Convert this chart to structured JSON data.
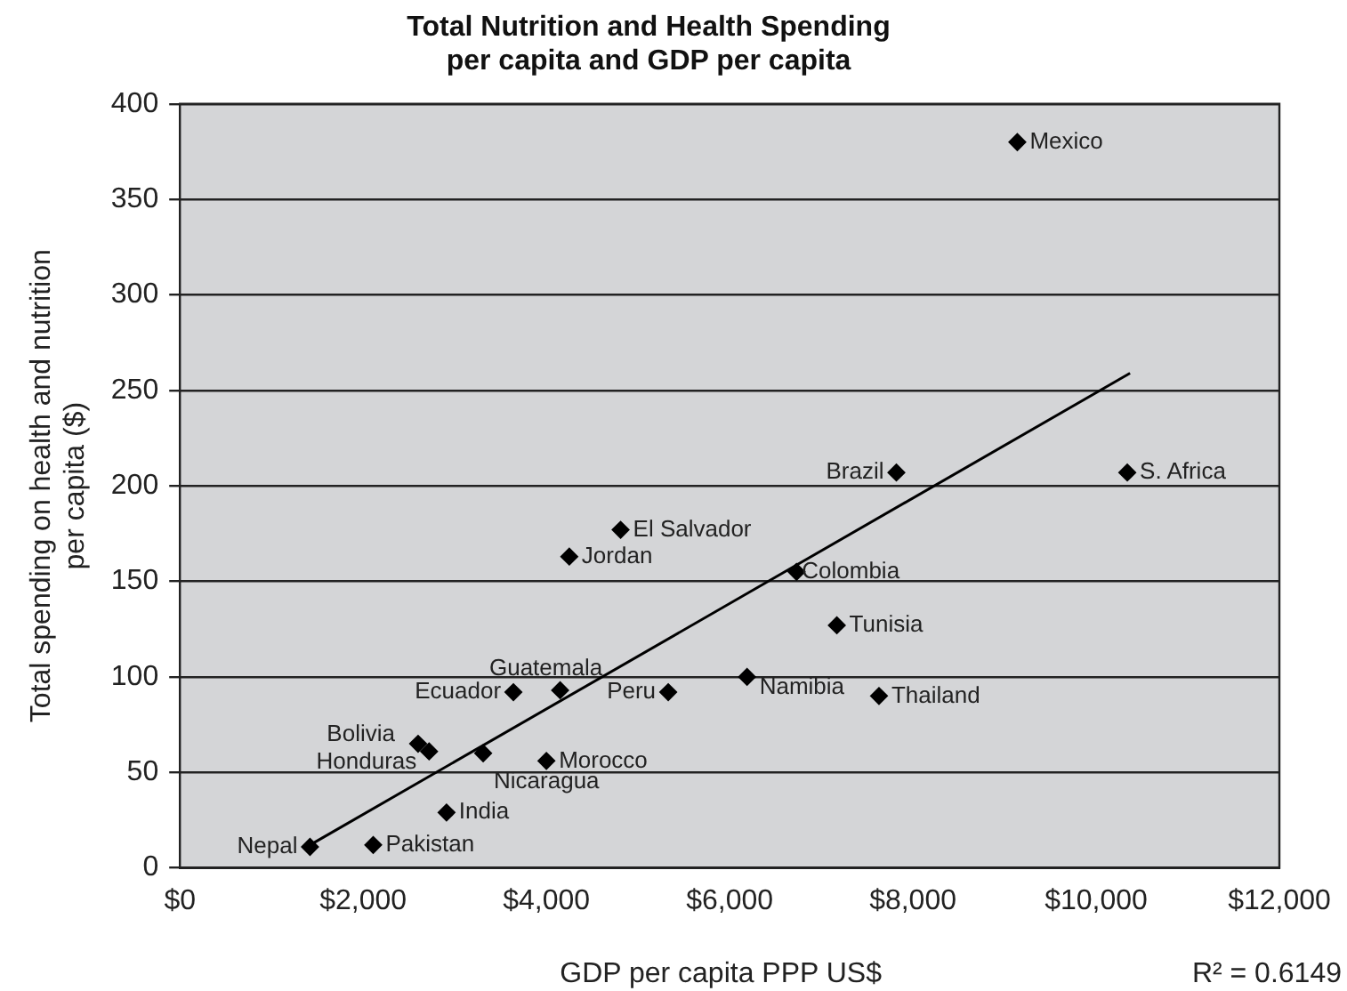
{
  "chart_data": {
    "type": "scatter",
    "title": "Total Nutrition and Health Spending\nper capita and GDP per capita",
    "xlabel": "GDP per capita PPP US$",
    "ylabel": "Total spending on health and nutrition\nper capita ($)",
    "xlim": [
      0,
      12000
    ],
    "xticks": [
      {
        "value": 0,
        "label": "$0"
      },
      {
        "value": 2000,
        "label": "$2,000"
      },
      {
        "value": 4000,
        "label": "$4,000"
      },
      {
        "value": 6000,
        "label": "$6,000"
      },
      {
        "value": 8000,
        "label": "$8,000"
      },
      {
        "value": 10000,
        "label": "$10,000"
      },
      {
        "value": 12000,
        "label": "$12,000"
      }
    ],
    "ylim": [
      0,
      400
    ],
    "yticks": [
      0,
      50,
      100,
      150,
      200,
      250,
      300,
      350,
      400
    ],
    "grid": "y",
    "legend": false,
    "marker": "diamond",
    "series": [
      {
        "name": "Mexico",
        "color": "#000000",
        "x": [
          9140
        ],
        "values": [
          380
        ]
      },
      {
        "name": "Brazil",
        "color": "#000000",
        "x": [
          7820
        ],
        "values": [
          207
        ]
      },
      {
        "name": "S. Africa",
        "color": "#000000",
        "x": [
          10340
        ],
        "values": [
          207
        ]
      },
      {
        "name": "El Salvador",
        "color": "#000000",
        "x": [
          4810
        ],
        "values": [
          177
        ]
      },
      {
        "name": "Jordan",
        "color": "#000000",
        "x": [
          4250
        ],
        "values": [
          163
        ]
      },
      {
        "name": "Colombia",
        "color": "#000000",
        "x": [
          6730
        ],
        "values": [
          155
        ]
      },
      {
        "name": "Tunisia",
        "color": "#000000",
        "x": [
          7170
        ],
        "values": [
          127
        ]
      },
      {
        "name": "Guatemala",
        "color": "#000000",
        "x": [
          4150
        ],
        "values": [
          93
        ]
      },
      {
        "name": "Ecuador",
        "color": "#000000",
        "x": [
          3640
        ],
        "values": [
          92
        ]
      },
      {
        "name": "Peru",
        "color": "#000000",
        "x": [
          5330
        ],
        "values": [
          92
        ]
      },
      {
        "name": "Namibia",
        "color": "#000000",
        "x": [
          6190
        ],
        "values": [
          100
        ]
      },
      {
        "name": "Thailand",
        "color": "#000000",
        "x": [
          7630
        ],
        "values": [
          90
        ]
      },
      {
        "name": "Bolivia",
        "color": "#000000",
        "x": [
          2600
        ],
        "values": [
          65
        ]
      },
      {
        "name": "Honduras",
        "color": "#000000",
        "x": [
          2720
        ],
        "values": [
          61
        ]
      },
      {
        "name": "Nicaragua",
        "color": "#000000",
        "x": [
          3310
        ],
        "values": [
          60
        ]
      },
      {
        "name": "Morocco",
        "color": "#000000",
        "x": [
          4000
        ],
        "values": [
          56
        ]
      },
      {
        "name": "India",
        "color": "#000000",
        "x": [
          2910
        ],
        "values": [
          29
        ]
      },
      {
        "name": "Pakistan",
        "color": "#000000",
        "x": [
          2110
        ],
        "values": [
          12
        ]
      },
      {
        "name": "Nepal",
        "color": "#000000",
        "x": [
          1420
        ],
        "values": [
          11
        ]
      },
      {
        "type": "line",
        "color": "#000000",
        "x": [
          1420,
          10370
        ],
        "values": [
          12,
          259
        ],
        "marker": "none",
        "line_style": "solid"
      }
    ],
    "annotations": [
      "R² = 0.6149"
    ]
  }
}
